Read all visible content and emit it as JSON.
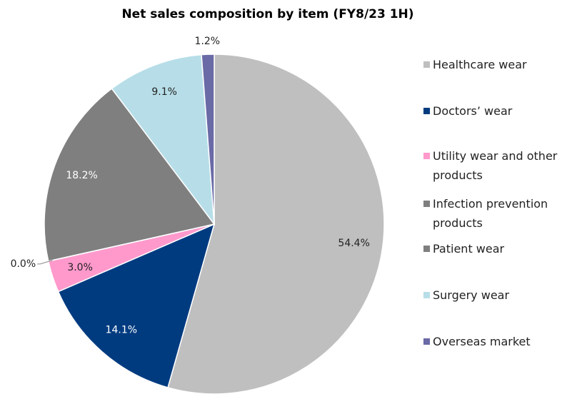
{
  "chart_data": {
    "type": "pie",
    "title": "Net sales composition by item (FY8/23 1H)",
    "categories": [
      "Healthcare wear",
      "Doctors’ wear",
      "Utility wear and other products",
      "Infection prevention products",
      "Patient wear",
      "Surgery wear",
      "Overseas market"
    ],
    "values": [
      54.4,
      14.1,
      3.0,
      0.0,
      18.2,
      9.1,
      1.2
    ],
    "value_labels": [
      "54.4%",
      "14.1%",
      "3.0%",
      "0.0%",
      "18.2%",
      "9.1%",
      "1.2%"
    ],
    "colors": [
      "#bfbfbf",
      "#003b80",
      "#ff99cc",
      "#7f7f7f",
      "#7f7f7f",
      "#b7dee8",
      "#6a6aa6"
    ],
    "legend": "right"
  }
}
